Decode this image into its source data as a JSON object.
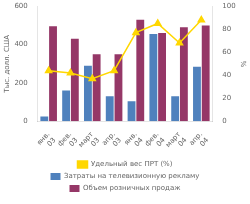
{
  "chart_data": {
    "type": "bar",
    "categories": [
      "янв.\n03",
      "фев.\n03",
      "март\n03",
      "апр.\n03",
      "янв.\n04",
      "фев.\n04",
      "март\n04",
      "апр.\n04"
    ],
    "series": [
      {
        "name": "Затраты на телевизионную рекламу",
        "color": "#4f81bd",
        "values": [
          25,
          160,
          290,
          130,
          105,
          455,
          130,
          285
        ]
      },
      {
        "name": "Объем розничных продаж",
        "color": "#953767",
        "values": [
          495,
          430,
          350,
          350,
          530,
          460,
          490,
          500
        ]
      },
      {
        "name": "Удельный вес ПРТ (%)",
        "type": "line",
        "axis": "y2",
        "color": "#ffd700",
        "marker": "triangle",
        "values": [
          44,
          42,
          37,
          44,
          77,
          85,
          68,
          88
        ]
      }
    ],
    "ylabel": "Тыс. долл. США",
    "y2label": "%",
    "ylim": [
      0,
      600
    ],
    "yticks": [
      0,
      200,
      400,
      600
    ],
    "y2lim": [
      0,
      100
    ],
    "y2ticks": [
      0,
      20,
      40,
      60,
      80,
      100
    ],
    "grid": false,
    "legend": "bottom"
  }
}
